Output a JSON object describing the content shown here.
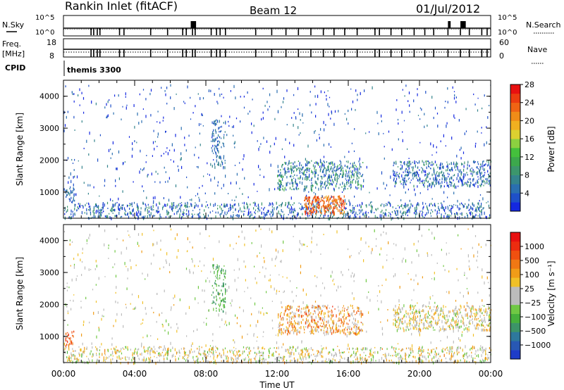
{
  "header": {
    "station": "Rankin Inlet (fitACF)",
    "beam": "Beam 12",
    "date": "01/Jul/2012"
  },
  "strip_panels": {
    "nsky": {
      "label": "N.Sky",
      "ticks": [
        "10^5",
        "10^0"
      ]
    },
    "nsearch": {
      "label": "N.Search",
      "ticks": [
        "10^5",
        "10^0"
      ]
    },
    "freq": {
      "label_line1": "Freq.",
      "label_line2": "[MHz]",
      "ticks": [
        "18",
        "8"
      ]
    },
    "nave": {
      "label": "Nave",
      "ticks": [
        "60",
        "0"
      ]
    },
    "cpid": {
      "label": "CPID",
      "value": "themis 3300"
    }
  },
  "chart_data": [
    {
      "type": "heatmap",
      "title": "",
      "xlabel": "",
      "ylabel": "Slant Range [km]",
      "xlim": [
        0,
        24
      ],
      "ylim": [
        180,
        4500
      ],
      "y_ticks": [
        1000,
        2000,
        3000,
        4000
      ],
      "colorbar": {
        "label": "Power [dB]",
        "ticks": [
          "4",
          "8",
          "12",
          "16",
          "20",
          "24",
          "28"
        ],
        "colors": [
          "#1428e0",
          "#1e50c8",
          "#2a6fb0",
          "#34848c",
          "#3c966c",
          "#3ca84c",
          "#44c03c",
          "#8cd040",
          "#dcd030",
          "#f0b020",
          "#f08c18",
          "#f06414",
          "#ec3c10",
          "#e81010"
        ]
      },
      "features": [
        {
          "name": "ground-scatter",
          "t": [
            0.0,
            24.0
          ],
          "r": [
            200,
            700
          ],
          "level": 2
        },
        {
          "name": "ionospheric-echo",
          "t": [
            12.0,
            16.8
          ],
          "r": [
            1100,
            2000
          ],
          "level": 3
        },
        {
          "name": "ionospheric-echo",
          "t": [
            18.5,
            24.0
          ],
          "r": [
            1200,
            2000
          ],
          "level": 2
        },
        {
          "name": "intense-echo",
          "t": [
            13.5,
            15.8
          ],
          "r": [
            350,
            900
          ],
          "level": 11
        }
      ]
    },
    {
      "type": "heatmap",
      "title": "",
      "xlabel": "Time UT",
      "ylabel": "Slant Range [km]",
      "xlim": [
        0,
        24
      ],
      "ylim": [
        180,
        4500
      ],
      "x_ticks": [
        "00:00",
        "04:00",
        "08:00",
        "12:00",
        "16:00",
        "20:00",
        "00:00"
      ],
      "y_ticks": [
        1000,
        2000,
        3000,
        4000
      ],
      "colorbar": {
        "label": "Velocity [m s⁻¹]",
        "ticks": [
          "1000",
          "500",
          "100",
          "25",
          "−25",
          "−100",
          "−500",
          "−1000"
        ],
        "colors": [
          "#1e3cc8",
          "#2858b4",
          "#2e789c",
          "#3c9468",
          "#46b03c",
          "#70c844",
          "#bcbcbc",
          "#bcbcbc",
          "#f0c028",
          "#f09c18",
          "#f07814",
          "#f05010",
          "#ec2c10",
          "#e81010"
        ]
      },
      "features": [
        {
          "name": "ground-scatter",
          "t": [
            0.0,
            24.0
          ],
          "r": [
            200,
            700
          ],
          "level": 7
        },
        {
          "name": "flow-region",
          "t": [
            12.0,
            16.8
          ],
          "r": [
            1100,
            2000
          ],
          "level": 9
        },
        {
          "name": "flow-region",
          "t": [
            18.5,
            24.0
          ],
          "r": [
            1200,
            2000
          ],
          "level": 7
        }
      ]
    }
  ]
}
